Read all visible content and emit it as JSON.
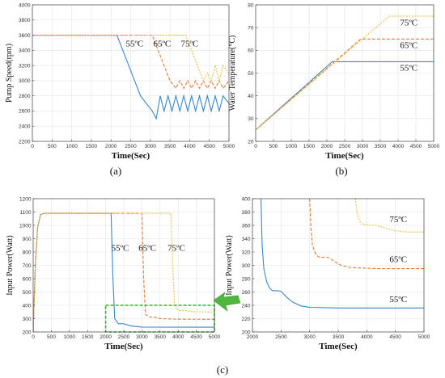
{
  "captions": {
    "a": "(a)",
    "b": "(b)",
    "c": "(c)"
  },
  "colors": {
    "s55": "#3a86c8",
    "s65": "#e07b3c",
    "s75": "#e8c04a",
    "box": "#2eb82e",
    "arrow": "#4fb83c"
  },
  "chart_data": [
    {
      "id": "a",
      "type": "line",
      "xlabel": "Time(Sec)",
      "ylabel": "Pump Speed(rpm)",
      "xlim": [
        0,
        5000
      ],
      "ylim": [
        2200,
        4000
      ],
      "xticks": [
        0,
        500,
        1000,
        1500,
        2000,
        2500,
        3000,
        3500,
        4000,
        4500,
        5000
      ],
      "yticks": [
        2200,
        2400,
        2600,
        2800,
        3000,
        3200,
        3400,
        3600,
        3800,
        4000
      ],
      "grid": true,
      "annotations": [
        {
          "text": "55ºC",
          "x": 2600,
          "y": 3450
        },
        {
          "text": "65ºC",
          "x": 3300,
          "y": 3450
        },
        {
          "text": "75ºC",
          "x": 4000,
          "y": 3450
        }
      ],
      "series": [
        {
          "name": "55ºC",
          "color": "s55",
          "dash": "solid",
          "x": [
            0,
            2150,
            2300,
            2450,
            2600,
            2750,
            2900,
            3050,
            3150,
            3250,
            3350,
            3450,
            3550,
            3650,
            3750,
            3850,
            3950,
            4050,
            4150,
            4250,
            4350,
            4450,
            4550,
            4650,
            4750,
            4850,
            5000
          ],
          "y": [
            3600,
            3600,
            3400,
            3200,
            3000,
            2800,
            2700,
            2600,
            2500,
            2800,
            2600,
            2800,
            2600,
            2800,
            2600,
            2800,
            2600,
            2800,
            2600,
            2800,
            2600,
            2800,
            2600,
            2800,
            2600,
            2800,
            2700
          ]
        },
        {
          "name": "65ºC",
          "color": "s65",
          "dash": "dashed",
          "x": [
            0,
            3050,
            3200,
            3350,
            3500,
            3650,
            3750,
            3850,
            3950,
            4050,
            4150,
            4250,
            4350,
            4450,
            4550,
            4650,
            4750,
            4850,
            5000
          ],
          "y": [
            3600,
            3600,
            3400,
            3200,
            3000,
            2900,
            3000,
            2900,
            3000,
            2900,
            3000,
            2900,
            3000,
            2900,
            3000,
            2900,
            3000,
            2900,
            3000
          ]
        },
        {
          "name": "75ºC",
          "color": "s75",
          "dash": "dotted",
          "x": [
            0,
            3900,
            4050,
            4200,
            4350,
            4450,
            4550,
            4650,
            4750,
            4850,
            5000
          ],
          "y": [
            3600,
            3600,
            3400,
            3200,
            3000,
            3100,
            3000,
            3200,
            3000,
            3200,
            3100
          ]
        }
      ]
    },
    {
      "id": "b",
      "type": "line",
      "xlabel": "Time(Sec)",
      "ylabel": "Water Temperature(°C)",
      "xlim": [
        0,
        5000
      ],
      "ylim": [
        20,
        80
      ],
      "xticks": [
        0,
        500,
        1000,
        1500,
        2000,
        2500,
        3000,
        3500,
        4000,
        4500,
        5000
      ],
      "yticks": [
        20,
        30,
        40,
        50,
        60,
        70,
        80
      ],
      "grid": true,
      "annotations": [
        {
          "text": "75ºC",
          "x": 4300,
          "y": 71
        },
        {
          "text": "65ºC",
          "x": 4300,
          "y": 61
        },
        {
          "text": "55ºC",
          "x": 4300,
          "y": 51
        }
      ],
      "series": [
        {
          "name": "55ºC",
          "color": "s55",
          "dash": "solid",
          "x": [
            0,
            2150,
            5000
          ],
          "y": [
            25,
            55,
            55
          ]
        },
        {
          "name": "65ºC",
          "color": "s65",
          "dash": "dashed",
          "x": [
            0,
            2950,
            5000
          ],
          "y": [
            25,
            65,
            65
          ]
        },
        {
          "name": "75ºC",
          "color": "s75",
          "dash": "dotted",
          "x": [
            0,
            3750,
            5000
          ],
          "y": [
            25,
            75,
            75
          ]
        }
      ]
    },
    {
      "id": "c1",
      "type": "line",
      "xlabel": "Time(Sec)",
      "ylabel": "Input Power(Watt)",
      "xlim": [
        0,
        5000
      ],
      "ylim": [
        200,
        1200
      ],
      "xticks": [
        0,
        500,
        1000,
        1500,
        2000,
        2500,
        3000,
        3500,
        4000,
        4500,
        5000
      ],
      "yticks": [
        200,
        300,
        400,
        500,
        600,
        700,
        800,
        900,
        1000,
        1100,
        1200
      ],
      "grid": true,
      "annotations": [
        {
          "text": "55ºC",
          "x": 2400,
          "y": 810
        },
        {
          "text": "65ºC",
          "x": 3150,
          "y": 810
        },
        {
          "text": "75ºC",
          "x": 3950,
          "y": 810
        }
      ],
      "highlight_box": {
        "x": [
          2000,
          5000
        ],
        "y": [
          200,
          400
        ]
      },
      "series": [
        {
          "name": "55ºC",
          "color": "s55",
          "dash": "solid",
          "x": [
            0,
            60,
            120,
            200,
            300,
            2150,
            2200,
            2250,
            2350,
            2500,
            2700,
            3000,
            5000
          ],
          "y": [
            200,
            700,
            980,
            1080,
            1090,
            1090,
            600,
            300,
            262,
            262,
            245,
            237,
            236
          ]
        },
        {
          "name": "65ºC",
          "color": "s65",
          "dash": "dashed",
          "x": [
            0,
            60,
            120,
            200,
            300,
            3000,
            3050,
            3100,
            3200,
            3350,
            3500,
            4000,
            5000
          ],
          "y": [
            200,
            700,
            980,
            1080,
            1090,
            1090,
            600,
            330,
            312,
            312,
            300,
            296,
            295
          ]
        },
        {
          "name": "75ºC",
          "color": "s75",
          "dash": "dotted",
          "x": [
            0,
            60,
            120,
            200,
            300,
            3800,
            3850,
            3900,
            4000,
            4200,
            4400,
            5000
          ],
          "y": [
            200,
            700,
            980,
            1080,
            1090,
            1090,
            700,
            400,
            362,
            360,
            352,
            350
          ]
        }
      ]
    },
    {
      "id": "c2",
      "type": "line",
      "xlabel": "Time(Sec)",
      "ylabel": "Input Power(Watt)",
      "xlim": [
        2000,
        5000
      ],
      "ylim": [
        200,
        400
      ],
      "xticks": [
        2000,
        2500,
        3000,
        3500,
        4000,
        4500,
        5000
      ],
      "yticks": [
        200,
        220,
        240,
        260,
        280,
        300,
        320,
        340,
        360,
        380,
        400
      ],
      "grid": true,
      "annotations": [
        {
          "text": "75ºC",
          "x": 4550,
          "y": 365
        },
        {
          "text": "65ºC",
          "x": 4550,
          "y": 305
        },
        {
          "text": "55ºC",
          "x": 4550,
          "y": 245
        }
      ],
      "series": [
        {
          "name": "55ºC",
          "color": "s55",
          "dash": "solid",
          "x": [
            2150,
            2170,
            2200,
            2250,
            2300,
            2350,
            2450,
            2500,
            2600,
            2700,
            2850,
            3000,
            3500,
            5000
          ],
          "y": [
            400,
            330,
            295,
            275,
            266,
            262,
            262,
            261,
            252,
            245,
            239,
            237,
            236,
            236
          ]
        },
        {
          "name": "65ºC",
          "color": "s65",
          "dash": "dashed",
          "x": [
            3000,
            3020,
            3050,
            3100,
            3150,
            3200,
            3300,
            3350,
            3450,
            3550,
            3700,
            3900,
            4200,
            5000
          ],
          "y": [
            400,
            360,
            330,
            318,
            313,
            312,
            312,
            311,
            305,
            300,
            297,
            296,
            295,
            295
          ]
        },
        {
          "name": "75ºC",
          "color": "s75",
          "dash": "dotted",
          "x": [
            3800,
            3830,
            3870,
            3920,
            3970,
            4050,
            4150,
            4250,
            4350,
            4500,
            4700,
            5000
          ],
          "y": [
            400,
            380,
            368,
            362,
            361,
            360,
            360,
            358,
            355,
            352,
            350,
            350
          ]
        }
      ]
    }
  ]
}
